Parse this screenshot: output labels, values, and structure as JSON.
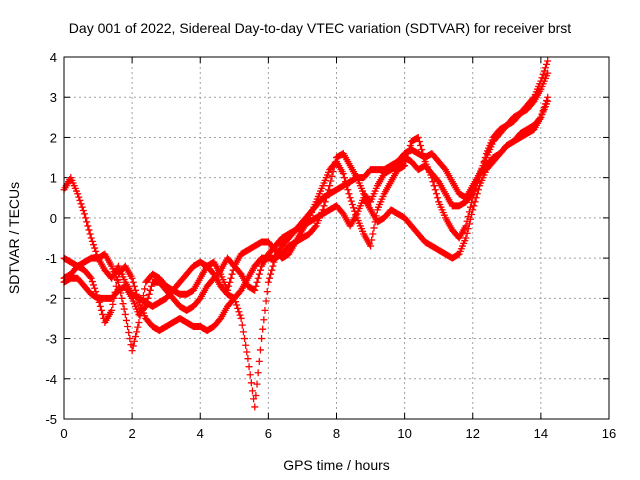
{
  "chart_data": {
    "type": "scatter",
    "title": "Day 001 of 2022, Sidereal Day-to-day VTEC variation (SDTVAR) for receiver brst",
    "xlabel": "GPS time / hours",
    "ylabel": "SDTVAR / TECUs",
    "xlim": [
      0,
      16
    ],
    "ylim": [
      -5,
      4
    ],
    "xticks": [
      "0",
      "2",
      "4",
      "6",
      "8",
      "10",
      "12",
      "14",
      "16"
    ],
    "yticks": [
      "-5",
      "-4",
      "-3",
      "-2",
      "-1",
      "0",
      "1",
      "2",
      "3",
      "4"
    ],
    "grid": true,
    "marker": "+",
    "color": "#ff0000",
    "series": [
      {
        "x": [
          0.0,
          0.2,
          0.4,
          0.6,
          0.8,
          1.0,
          1.2,
          1.4,
          1.6,
          1.8,
          2.0,
          2.2,
          2.4,
          2.6,
          2.8,
          3.0,
          3.2,
          3.4,
          3.6,
          3.8,
          4.0,
          4.2,
          4.4,
          4.6,
          4.8,
          5.0,
          5.2,
          5.4,
          5.6,
          5.8,
          6.0,
          6.2,
          6.4,
          6.6,
          6.8,
          7.0,
          7.2,
          7.4,
          7.6,
          7.8,
          8.0,
          8.2,
          8.4,
          8.6,
          8.8,
          9.0,
          9.2,
          9.4,
          9.6,
          9.8,
          10.0,
          10.2,
          10.4,
          10.6,
          10.8,
          11.0,
          11.2,
          11.4,
          11.6,
          11.8,
          12.0,
          12.2,
          12.4,
          12.6,
          12.8,
          13.0,
          13.2,
          13.4,
          13.6,
          13.8,
          14.0,
          14.2
        ],
        "y": [
          0.7,
          1.0,
          0.6,
          0.1,
          -0.5,
          -1.0,
          -1.3,
          -1.5,
          -1.2,
          -1.6,
          -1.9,
          -2.0,
          -2.1,
          -2.2,
          -2.1,
          -2.0,
          -1.8,
          -1.6,
          -1.4,
          -1.2,
          -1.1,
          -1.2,
          -1.4,
          -1.7,
          -1.9,
          -2.0,
          -1.8,
          -1.5,
          -1.2,
          -1.0,
          -1.0,
          -1.0,
          -0.9,
          -0.7,
          -0.6,
          -0.5,
          -0.4,
          -0.2,
          0.2,
          0.8,
          1.5,
          1.6,
          1.3,
          1.0,
          0.6,
          0.4,
          0.8,
          1.1,
          1.2,
          1.3,
          1.5,
          1.4,
          1.2,
          1.3,
          1.1,
          0.9,
          0.6,
          0.3,
          0.3,
          0.4,
          0.6,
          1.0,
          1.6,
          2.0,
          2.2,
          2.3,
          2.4,
          2.6,
          2.8,
          3.0,
          3.4,
          3.9
        ]
      },
      {
        "x": [
          0.0,
          0.2,
          0.4,
          0.6,
          0.8,
          1.0,
          1.2,
          1.4,
          1.6,
          1.8,
          2.0,
          2.2,
          2.4,
          2.6,
          2.8,
          3.0,
          3.2,
          3.4,
          3.6,
          3.8,
          4.0,
          4.2,
          4.4,
          4.6,
          4.8,
          5.0,
          5.2,
          5.4,
          5.6,
          5.8,
          6.0,
          6.2,
          6.4,
          6.6,
          6.8,
          7.0,
          7.2,
          7.4,
          7.6,
          7.8,
          8.0,
          8.2,
          8.4,
          8.6,
          8.8,
          9.0,
          9.2,
          9.4,
          9.6,
          9.8,
          10.0,
          10.2,
          10.4,
          10.6,
          10.8,
          11.0,
          11.2,
          11.4,
          11.6,
          11.8,
          12.0,
          12.2,
          12.4,
          12.6,
          12.8,
          13.0,
          13.2,
          13.4,
          13.6,
          13.8,
          14.0,
          14.2
        ],
        "y": [
          -1.0,
          -1.1,
          -1.2,
          -1.3,
          -1.5,
          -2.0,
          -2.6,
          -2.3,
          -1.4,
          -1.2,
          -1.5,
          -2.1,
          -2.5,
          -2.7,
          -2.8,
          -2.7,
          -2.6,
          -2.5,
          -2.6,
          -2.7,
          -2.7,
          -2.8,
          -2.7,
          -2.5,
          -2.2,
          -2.0,
          -2.5,
          -3.5,
          -4.7,
          -3.0,
          -1.6,
          -1.0,
          -0.7,
          -0.5,
          -0.3,
          -0.1,
          0.1,
          0.3,
          0.5,
          0.6,
          0.7,
          0.8,
          0.9,
          1.0,
          1.0,
          1.2,
          1.2,
          1.2,
          1.3,
          1.4,
          1.6,
          1.7,
          1.6,
          1.5,
          1.6,
          1.4,
          1.2,
          0.9,
          0.6,
          0.5,
          0.8,
          1.1,
          1.3,
          1.5,
          1.6,
          1.8,
          1.9,
          2.1,
          2.2,
          2.3,
          2.5,
          2.9
        ]
      },
      {
        "x": [
          0.0,
          0.2,
          0.4,
          0.6,
          0.8,
          1.0,
          1.2,
          1.4,
          1.6,
          1.8,
          2.0,
          2.2,
          2.4,
          2.6,
          2.8,
          3.0,
          3.2,
          3.4,
          3.6,
          3.8,
          4.0,
          4.2,
          4.4,
          4.6,
          4.8,
          5.0,
          5.2,
          5.4,
          5.6,
          5.8,
          6.0,
          6.2,
          6.4,
          6.6,
          6.8,
          7.0,
          7.2,
          7.4,
          7.6,
          7.8,
          8.0,
          8.2,
          8.4,
          8.6,
          8.8,
          9.0,
          9.2,
          9.4,
          9.6,
          9.8,
          10.0,
          10.2,
          10.4,
          10.6,
          10.8,
          11.0,
          11.2,
          11.4,
          11.6,
          11.8,
          12.0,
          12.2,
          12.4,
          12.6,
          12.8,
          13.0,
          13.2,
          13.4,
          13.6,
          13.8,
          14.0,
          14.2
        ],
        "y": [
          -1.6,
          -1.5,
          -1.5,
          -1.7,
          -1.9,
          -2.0,
          -2.0,
          -2.0,
          -1.8,
          -1.7,
          -2.0,
          -2.4,
          -2.2,
          -1.6,
          -1.6,
          -1.8,
          -2.0,
          -2.2,
          -2.3,
          -2.2,
          -2.0,
          -1.7,
          -1.5,
          -1.3,
          -1.0,
          -1.2,
          -1.4,
          -1.7,
          -1.8,
          -1.2,
          -0.9,
          -0.7,
          -0.5,
          -0.4,
          -0.3,
          -0.2,
          -0.1,
          0.0,
          0.1,
          0.2,
          0.3,
          0.1,
          -0.2,
          0.1,
          0.5,
          0.2,
          -0.1,
          0.0,
          0.2,
          0.1,
          0.0,
          -0.2,
          -0.4,
          -0.6,
          -0.7,
          -0.8,
          -0.9,
          -1.0,
          -0.9,
          -0.5,
          0.2,
          0.8,
          1.2,
          1.4,
          1.6,
          1.8,
          1.9,
          2.0,
          2.1,
          2.2,
          2.5,
          3.0
        ]
      },
      {
        "x": [
          0.0,
          0.2,
          0.4,
          0.6,
          0.8,
          1.0,
          1.2,
          1.4,
          1.6,
          1.8,
          2.0,
          2.2,
          2.4,
          2.6,
          2.8,
          3.0,
          3.2,
          3.4,
          3.6,
          3.8,
          4.0,
          4.2,
          4.4,
          4.6,
          4.8,
          5.0,
          5.2,
          5.4,
          5.6,
          5.8,
          6.0,
          6.2,
          6.4,
          6.6,
          6.8,
          7.0,
          7.2,
          7.4,
          7.6,
          7.8,
          8.0,
          8.2,
          8.4,
          8.6,
          8.8,
          9.0,
          9.2,
          9.4,
          9.6,
          9.8,
          10.0,
          10.2,
          10.4,
          10.6,
          10.8,
          11.0,
          11.2,
          11.4,
          11.6,
          11.8,
          12.0,
          12.2,
          12.4,
          12.6,
          12.8,
          13.0,
          13.2,
          13.4,
          13.6,
          13.8,
          14.0,
          14.2
        ],
        "y": [
          -1.5,
          -1.4,
          -1.2,
          -1.1,
          -1.0,
          -1.0,
          -0.9,
          -1.2,
          -1.6,
          -2.4,
          -3.3,
          -2.6,
          -1.6,
          -1.4,
          -1.5,
          -1.7,
          -1.8,
          -1.9,
          -1.9,
          -1.8,
          -1.5,
          -1.2,
          -1.1,
          -1.4,
          -1.8,
          -1.2,
          -0.9,
          -0.8,
          -0.7,
          -0.6,
          -0.6,
          -0.8,
          -1.0,
          -0.9,
          -0.6,
          -0.3,
          0.0,
          0.4,
          0.8,
          1.2,
          1.4,
          1.1,
          0.5,
          0.0,
          -0.4,
          -0.7,
          0.2,
          0.6,
          0.9,
          1.2,
          1.3,
          1.9,
          2.0,
          1.4,
          1.0,
          0.4,
          0.0,
          -0.3,
          -0.5,
          -0.2,
          0.5,
          1.1,
          1.5,
          1.9,
          2.1,
          2.3,
          2.5,
          2.6,
          2.7,
          2.9,
          3.2,
          3.6
        ]
      }
    ]
  }
}
